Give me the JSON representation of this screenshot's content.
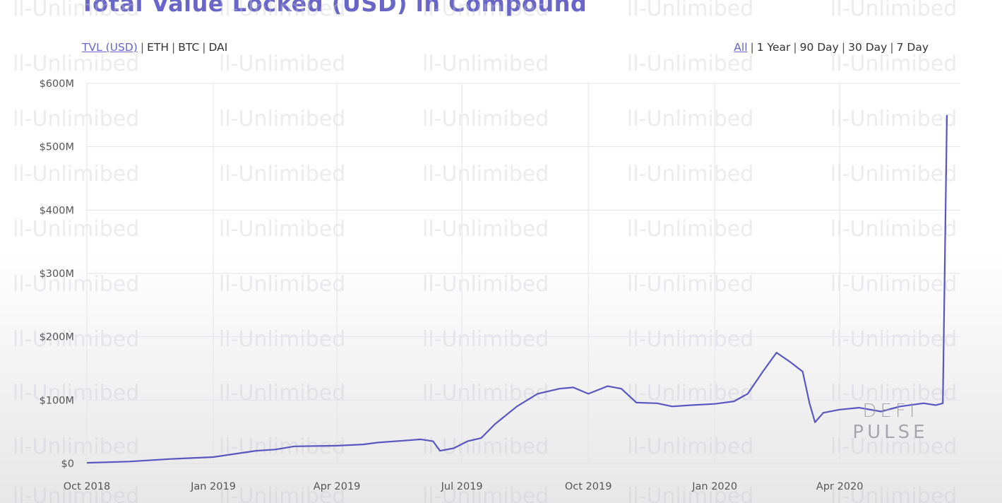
{
  "title": "Total Value Locked (USD) in Compound",
  "metric_tabs": [
    {
      "label": "TVL (USD)",
      "active": true
    },
    {
      "label": "ETH",
      "active": false
    },
    {
      "label": "BTC",
      "active": false
    },
    {
      "label": "DAI",
      "active": false
    }
  ],
  "range_tabs": [
    {
      "label": "All",
      "active": true
    },
    {
      "label": "1 Year",
      "active": false
    },
    {
      "label": "90 Day",
      "active": false
    },
    {
      "label": "30 Day",
      "active": false
    },
    {
      "label": "7 Day",
      "active": false
    }
  ],
  "separator": "|",
  "watermark_text": "ll-Unlimibed",
  "logo": {
    "line1": "DEFI",
    "line2": "PULSE"
  },
  "colors": {
    "accent": "#6a66c8",
    "line": "#5a56c0",
    "grid": "#e4e4ea"
  },
  "chart_data": {
    "type": "line",
    "title": "Total Value Locked (USD) in Compound",
    "xlabel": "",
    "ylabel": "",
    "y_ticks": [
      "$0",
      "$100M",
      "$200M",
      "$300M",
      "$400M",
      "$500M",
      "$600M"
    ],
    "ylim": [
      0,
      600
    ],
    "x_ticks": [
      "Oct 2018",
      "Jan 2019",
      "Apr 2019",
      "Jul 2019",
      "Oct 2019",
      "Jan 2020",
      "Apr 2020"
    ],
    "grid": true,
    "series": [
      {
        "x": [
          "2018-10-01",
          "2018-11-01",
          "2018-12-01",
          "2019-01-01",
          "2019-02-01",
          "2019-02-15",
          "2019-03-01",
          "2019-04-01",
          "2019-04-20",
          "2019-05-01",
          "2019-05-20",
          "2019-06-01",
          "2019-06-10",
          "2019-06-15",
          "2019-06-25",
          "2019-07-05",
          "2019-07-15",
          "2019-07-25",
          "2019-08-10",
          "2019-08-25",
          "2019-09-10",
          "2019-09-20",
          "2019-10-01",
          "2019-10-15",
          "2019-10-25",
          "2019-11-05",
          "2019-11-20",
          "2019-12-01",
          "2019-12-15",
          "2020-01-01",
          "2020-01-15",
          "2020-01-25",
          "2020-02-05",
          "2020-02-15",
          "2020-02-25",
          "2020-03-05",
          "2020-03-10",
          "2020-03-14",
          "2020-03-20",
          "2020-04-01",
          "2020-04-15",
          "2020-05-01",
          "2020-05-15",
          "2020-06-01",
          "2020-06-10",
          "2020-06-15",
          "2020-06-18"
        ],
        "y": [
          1,
          3,
          7,
          10,
          20,
          22,
          27,
          28,
          30,
          33,
          36,
          38,
          35,
          20,
          24,
          35,
          40,
          62,
          90,
          110,
          118,
          120,
          110,
          122,
          118,
          96,
          95,
          90,
          92,
          94,
          98,
          110,
          145,
          175,
          160,
          145,
          95,
          65,
          80,
          85,
          88,
          82,
          90,
          95,
          92,
          95,
          550
        ]
      }
    ]
  }
}
